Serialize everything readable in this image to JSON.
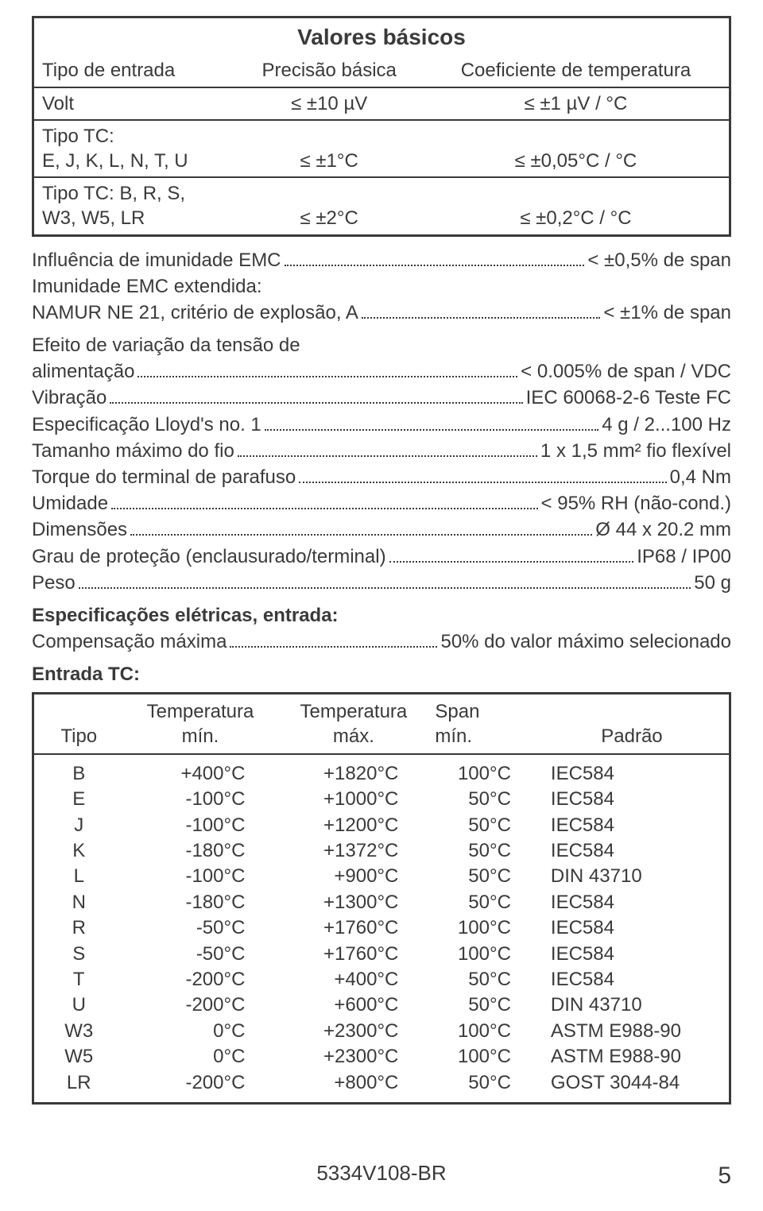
{
  "table1": {
    "title": "Valores básicos",
    "headers": {
      "c1": "Tipo de entrada",
      "c2": "Precisão básica",
      "c3": "Coeficiente de temperatura"
    },
    "rows": [
      {
        "c1": "Volt",
        "c2": "≤ ±10 µV",
        "c3": "≤ ±1 µV / °C"
      },
      {
        "c1a": "Tipo TC:",
        "c1b": "E, J, K, L, N, T, U",
        "c2": "≤ ±1°C",
        "c3": "≤ ±0,05°C / °C"
      },
      {
        "c1a": "Tipo TC: B, R, S,",
        "c1b": "W3, W5, LR",
        "c2": "≤ ±2°C",
        "c3": "≤ ±0,2°C / °C"
      }
    ]
  },
  "specs1": [
    {
      "label": "Influência de imunidade EMC",
      "value": "< ±0,5% de span"
    },
    {
      "continue": "Imunidade EMC extendida:"
    },
    {
      "label": "NAMUR NE 21, critério de explosão, A",
      "value": "< ±1% de span"
    }
  ],
  "specs2": [
    {
      "continue": "Efeito de variação da tensão de"
    },
    {
      "label": "alimentação",
      "value": "< 0.005% de span / VDC"
    },
    {
      "label": "Vibração",
      "value": "IEC 60068-2-6 Teste FC"
    },
    {
      "label": "Especificação Lloyd's no. 1",
      "value": "4 g / 2...100 Hz"
    },
    {
      "label": "Tamanho máximo do fio",
      "value": "1 x 1,5 mm² fio flexível"
    },
    {
      "label": "Torque do terminal de parafuso",
      "value": "0,4 Nm"
    },
    {
      "label": "Umidade",
      "value": "< 95% RH (não-cond.)"
    },
    {
      "label": "Dimensões",
      "value": "Ø 44 x 20.2 mm"
    },
    {
      "label": "Grau de proteção (enclausurado/terminal)",
      "value": "IP68 / IP00"
    },
    {
      "label": "Peso",
      "value": "50 g"
    }
  ],
  "elec_hdr": "Especificações elétricas, entrada:",
  "specs3": [
    {
      "label": "Compensação máxima",
      "value": "50% do valor máximo selecionado"
    }
  ],
  "tc_hdr": "Entrada TC:",
  "table2": {
    "headers": {
      "c1": "Tipo",
      "c2a": "Temperatura",
      "c2b": "mín.",
      "c3a": "Temperatura",
      "c3b": "máx.",
      "c4a": "Span",
      "c4b": "mín.",
      "c5": "Padrão"
    },
    "rows": [
      {
        "c1": "B",
        "c2": "+400°C",
        "c3": "+1820°C",
        "c4": "100°C",
        "c5": "IEC584"
      },
      {
        "c1": "E",
        "c2": "-100°C",
        "c3": "+1000°C",
        "c4": "50°C",
        "c5": "IEC584"
      },
      {
        "c1": "J",
        "c2": "-100°C",
        "c3": "+1200°C",
        "c4": "50°C",
        "c5": "IEC584"
      },
      {
        "c1": "K",
        "c2": "-180°C",
        "c3": "+1372°C",
        "c4": "50°C",
        "c5": "IEC584"
      },
      {
        "c1": "L",
        "c2": "-100°C",
        "c3": "+900°C",
        "c4": "50°C",
        "c5": "DIN 43710"
      },
      {
        "c1": "N",
        "c2": "-180°C",
        "c3": "+1300°C",
        "c4": "50°C",
        "c5": "IEC584"
      },
      {
        "c1": "R",
        "c2": "-50°C",
        "c3": "+1760°C",
        "c4": "100°C",
        "c5": "IEC584"
      },
      {
        "c1": "S",
        "c2": "-50°C",
        "c3": "+1760°C",
        "c4": "100°C",
        "c5": "IEC584"
      },
      {
        "c1": "T",
        "c2": "-200°C",
        "c3": "+400°C",
        "c4": "50°C",
        "c5": "IEC584"
      },
      {
        "c1": "U",
        "c2": "-200°C",
        "c3": "+600°C",
        "c4": "50°C",
        "c5": "DIN 43710"
      },
      {
        "c1": "W3",
        "c2": "0°C",
        "c3": "+2300°C",
        "c4": "100°C",
        "c5": "ASTM E988-90"
      },
      {
        "c1": "W5",
        "c2": "0°C",
        "c3": "+2300°C",
        "c4": "100°C",
        "c5": "ASTM E988-90"
      },
      {
        "c1": "LR",
        "c2": "-200°C",
        "c3": "+800°C",
        "c4": "50°C",
        "c5": "GOST 3044-84"
      }
    ]
  },
  "footer": {
    "code": "5334V108-BR",
    "page": "5"
  }
}
